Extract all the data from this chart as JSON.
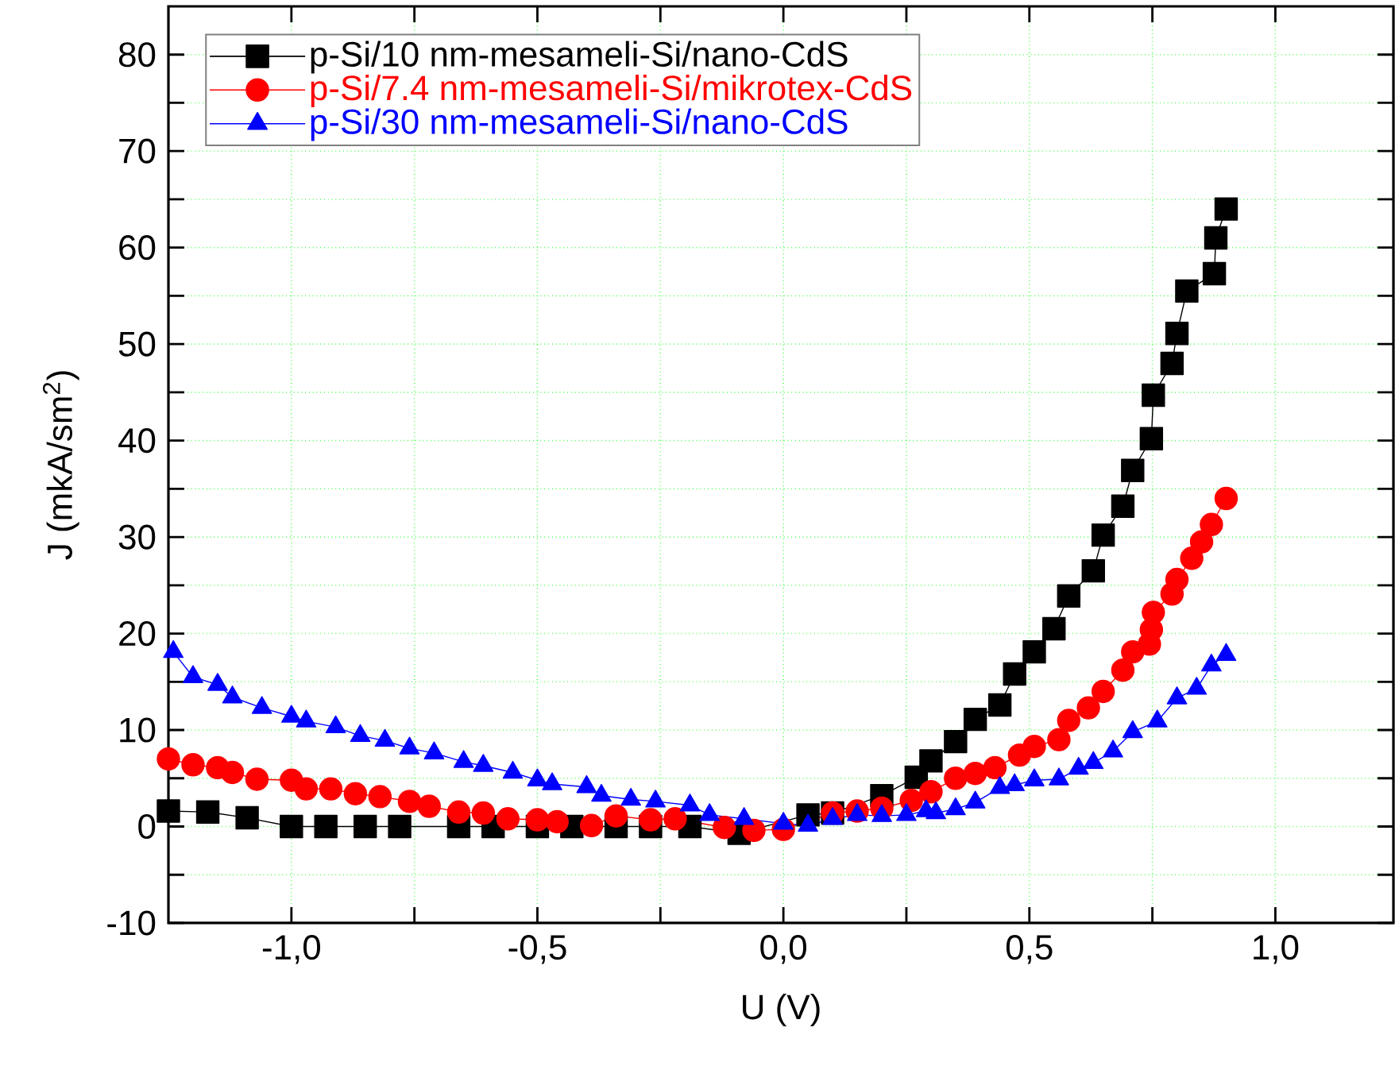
{
  "chart_data": {
    "type": "line",
    "xlabel": "U (V)",
    "ylabel": "J (mkA/sm$^{2}$)",
    "xlim": [
      -1.25,
      1.24
    ],
    "ylim": [
      -10,
      85
    ],
    "xticks": [
      {
        "value": -1.0,
        "label": "-1,0"
      },
      {
        "value": -0.75,
        "label": null
      },
      {
        "value": -0.5,
        "label": "-0,5"
      },
      {
        "value": -0.25,
        "label": null
      },
      {
        "value": 0.0,
        "label": "0,0"
      },
      {
        "value": 0.25,
        "label": null
      },
      {
        "value": 0.5,
        "label": "0,5"
      },
      {
        "value": 0.75,
        "label": null
      },
      {
        "value": 1.0,
        "label": "1,0"
      }
    ],
    "yticks": [
      -10,
      {
        "value": -5,
        "label": null
      },
      0,
      {
        "value": 5,
        "label": null
      },
      10,
      {
        "value": 15,
        "label": null
      },
      20,
      {
        "value": 25,
        "label": null
      },
      30,
      {
        "value": 35,
        "label": null
      },
      40,
      {
        "value": 45,
        "label": null
      },
      50,
      {
        "value": 55,
        "label": null
      },
      60,
      {
        "value": 65,
        "label": null
      },
      70,
      {
        "value": 75,
        "label": null
      },
      80
    ],
    "grid": true,
    "legend": "top left",
    "line_style": "solid",
    "series": [
      {
        "name": "p-Si/10 nm-mesameli-Si/nano-CdS",
        "color": "#000000",
        "marker": "square",
        "x": [
          -1.25,
          -1.17,
          -1.09,
          -1.0,
          -0.93,
          -0.85,
          -0.78,
          -0.66,
          -0.59,
          -0.5,
          -0.43,
          -0.34,
          -0.27,
          -0.19,
          -0.09,
          0.05,
          0.1,
          0.2,
          0.27,
          0.3,
          0.35,
          0.39,
          0.44,
          0.47,
          0.51,
          0.55,
          0.58,
          0.63,
          0.65,
          0.69,
          0.71,
          0.748,
          0.752,
          0.79,
          0.8,
          0.82,
          0.876,
          0.879,
          0.9
        ],
        "values": [
          1.6,
          1.5,
          0.9,
          0,
          0,
          0,
          0,
          0,
          0,
          0,
          0,
          0,
          0,
          0,
          -0.7,
          1.2,
          1.4,
          3.2,
          5.1,
          6.8,
          8.8,
          11.1,
          12.6,
          15.8,
          18.1,
          20.5,
          23.9,
          26.5,
          30.2,
          33.2,
          36.9,
          40.2,
          44.7,
          48.0,
          51.1,
          55.5,
          57.3,
          61.0,
          64.0
        ]
      },
      {
        "name": "p-Si/7.4 nm-mesameli-Si/mikrotex-CdS",
        "color": "#ff0000",
        "marker": "circle",
        "x": [
          -1.25,
          -1.2,
          -1.15,
          -1.12,
          -1.07,
          -1.0,
          -0.97,
          -0.92,
          -0.87,
          -0.82,
          -0.76,
          -0.72,
          -0.66,
          -0.61,
          -0.56,
          -0.5,
          -0.46,
          -0.39,
          -0.34,
          -0.27,
          -0.22,
          -0.12,
          -0.06,
          0.0,
          0.1,
          0.15,
          0.2,
          0.26,
          0.3,
          0.35,
          0.39,
          0.43,
          0.48,
          0.51,
          0.56,
          0.58,
          0.62,
          0.65,
          0.69,
          0.71,
          0.744,
          0.748,
          0.752,
          0.79,
          0.8,
          0.83,
          0.85,
          0.87,
          0.9
        ],
        "values": [
          7.0,
          6.4,
          6.1,
          5.6,
          4.9,
          4.8,
          3.9,
          3.9,
          3.4,
          3.1,
          2.6,
          2.1,
          1.5,
          1.4,
          0.8,
          0.7,
          0.5,
          0.1,
          1.1,
          0.7,
          0.8,
          -0.1,
          -0.4,
          -0.3,
          1.4,
          1.6,
          1.9,
          2.7,
          3.6,
          5.0,
          5.5,
          6.1,
          7.4,
          8.3,
          9.0,
          11.0,
          12.3,
          14.0,
          16.2,
          18.1,
          18.9,
          20.4,
          22.2,
          24.1,
          25.6,
          27.8,
          29.5,
          31.3,
          34.0
        ]
      },
      {
        "name": "p-Si/30 nm-mesameli-Si/nano-CdS",
        "color": "#0000ff",
        "marker": "triangle",
        "x": [
          -1.24,
          -1.2,
          -1.15,
          -1.12,
          -1.06,
          -1.0,
          -0.97,
          -0.91,
          -0.86,
          -0.81,
          -0.76,
          -0.71,
          -0.65,
          -0.61,
          -0.55,
          -0.5,
          -0.47,
          -0.4,
          -0.37,
          -0.31,
          -0.26,
          -0.19,
          -0.15,
          -0.08,
          0.0,
          0.05,
          0.1,
          0.15,
          0.2,
          0.25,
          0.29,
          0.31,
          0.35,
          0.39,
          0.44,
          0.47,
          0.51,
          0.56,
          0.6,
          0.63,
          0.67,
          0.71,
          0.76,
          0.8,
          0.84,
          0.87,
          0.9
        ],
        "values": [
          18.1,
          15.5,
          14.7,
          13.4,
          12.3,
          11.4,
          10.9,
          10.3,
          9.4,
          8.9,
          8.1,
          7.6,
          6.7,
          6.3,
          5.6,
          4.8,
          4.4,
          4.1,
          3.2,
          2.8,
          2.6,
          2.2,
          1.2,
          0.8,
          0.3,
          0.1,
          0.8,
          1.2,
          1.1,
          1.2,
          1.6,
          1.4,
          1.8,
          2.5,
          4.0,
          4.3,
          4.8,
          4.9,
          6.0,
          6.6,
          7.8,
          9.8,
          10.9,
          13.3,
          14.3,
          16.7,
          17.8
        ]
      }
    ]
  }
}
